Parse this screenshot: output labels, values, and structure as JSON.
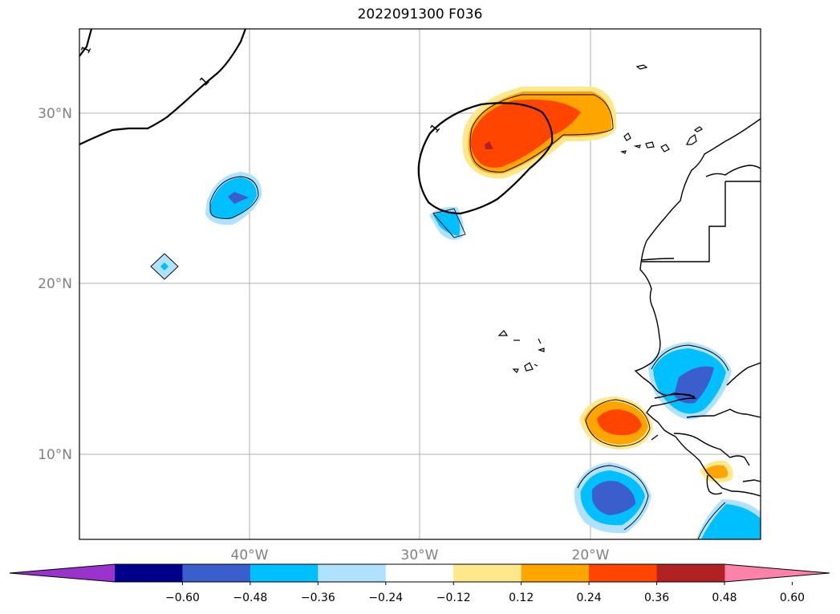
{
  "title": "2022091300 F036",
  "map": {
    "lon_range": [
      -50,
      -10
    ],
    "lat_range": [
      5,
      35
    ],
    "lon_ticks": [
      {
        "value": -40,
        "label": "40°W"
      },
      {
        "value": -30,
        "label": "30°W"
      },
      {
        "value": -20,
        "label": "20°W"
      }
    ],
    "lat_ticks": [
      {
        "value": 30,
        "label": "30°N"
      },
      {
        "value": 20,
        "label": "20°N"
      },
      {
        "value": 10,
        "label": "10°N"
      }
    ],
    "contour_labels": [
      "1",
      "1",
      "1"
    ],
    "colors": {
      "grid": "#b0b0b0",
      "tick_label": "#808080"
    }
  },
  "colorbar": {
    "extend": "both",
    "colors": [
      "#9933cc",
      "#00008b",
      "#3a5fcd",
      "#00bfff",
      "#b0e2ff",
      "#ffffff",
      "#ffe88c",
      "#ffa500",
      "#ff4500",
      "#b22222",
      "#ff82ab"
    ],
    "tick_labels": [
      "−0.60",
      "−0.48",
      "−0.36",
      "−0.24",
      "−0.12",
      "0.12",
      "0.24",
      "0.36",
      "0.48",
      "0.60"
    ]
  }
}
